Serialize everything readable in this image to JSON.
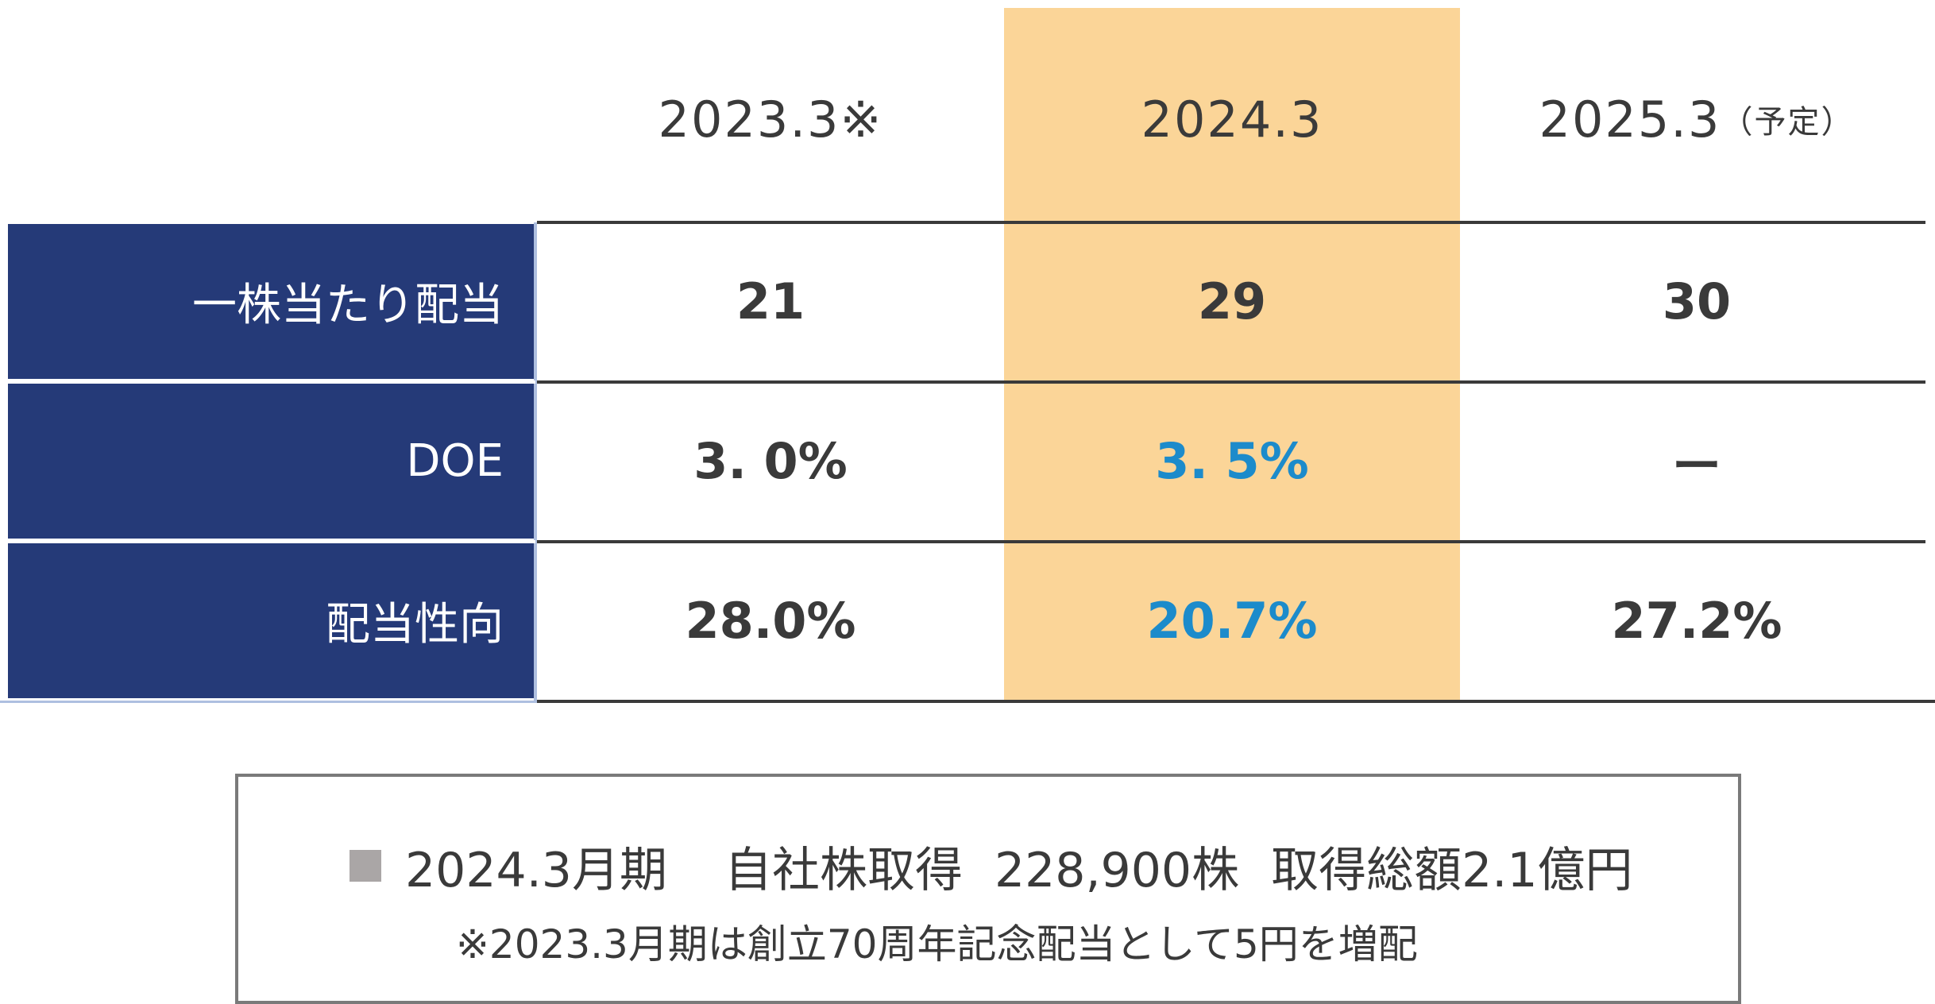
{
  "columns": [
    {
      "year": "2023.3",
      "suffix": " ※"
    },
    {
      "year": "2024.3",
      "suffix": ""
    },
    {
      "year": "2025.3",
      "suffix": "（予定）"
    }
  ],
  "rows": [
    {
      "label": "一株当たり配当",
      "values": [
        "21",
        "29",
        "30"
      ]
    },
    {
      "label": "DOE",
      "values": [
        "3. 0%",
        "3. 5%",
        "ー"
      ]
    },
    {
      "label": "配当性向",
      "values": [
        "28.0%",
        "20.7%",
        "27.2%"
      ]
    }
  ],
  "note": {
    "period": "2024.3月期",
    "buyback_label": "自社株取得",
    "shares": "228,900株",
    "total": "取得総額2.1億円",
    "footnote": "※2023.3月期は創立70周年記念配当として5円を増配"
  },
  "colors": {
    "header_bg": "#253a78",
    "highlight": "#fbd598",
    "accent_text": "#1c8bcb",
    "text": "#3a3a3a",
    "bullet": "#aaa6a6"
  }
}
